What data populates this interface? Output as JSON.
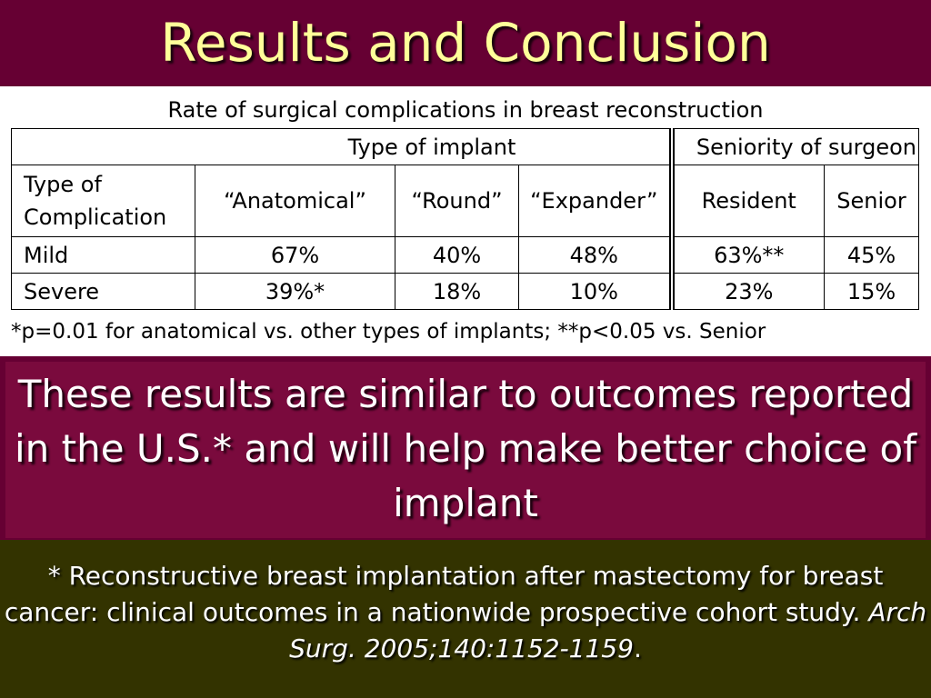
{
  "title": "Results and Conclusion",
  "table": {
    "caption": "Rate of surgical complications in breast reconstruction",
    "group_headers": {
      "implant": "Type of implant",
      "seniority": "Seniority of surgeon"
    },
    "row_header_label_line1": "Type of",
    "row_header_label_line2": "Complication",
    "columns": [
      "“Anatomical”",
      "“Round”",
      "“Expander”",
      "Resident",
      "Senior"
    ],
    "rows": [
      {
        "label": "Mild",
        "values": [
          "67%",
          "40%",
          "48%",
          "63%**",
          "45%"
        ]
      },
      {
        "label": "Severe",
        "values": [
          "39%*",
          "18%",
          "10%",
          "23%",
          "15%"
        ]
      }
    ],
    "footnote": "*p=0.01 for anatomical vs. other types of implants; **p<0.05 vs. Senior"
  },
  "conclusion": "These results are similar to outcomes reported in the U.S.* and will help make better choice of implant",
  "reference": {
    "text": "* Reconstructive breast implantation after mastectomy for breast cancer: clinical outcomes in a nationwide prospective cohort study.",
    "citation": "Arch Surg. 2005;140:1152-1159",
    "end": "."
  },
  "colors": {
    "background": "#660033",
    "title_text": "#FFFF99",
    "reference_band": "#333300",
    "table_panel": "#ffffff"
  }
}
